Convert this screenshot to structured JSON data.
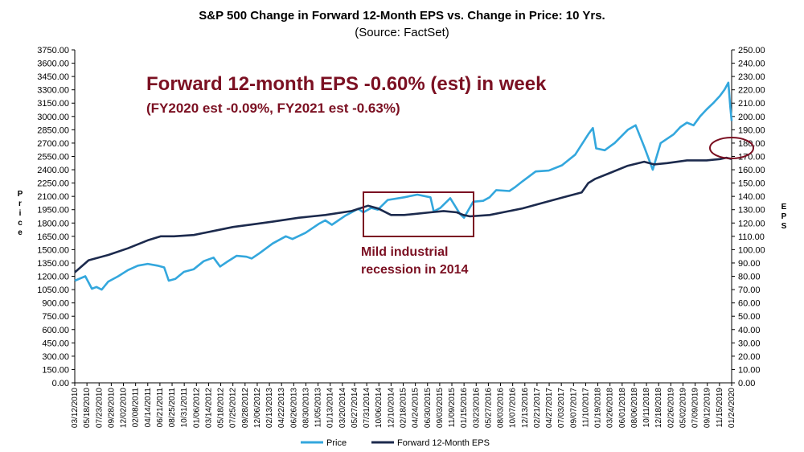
{
  "chart_data": {
    "type": "line",
    "title": "S&P 500 Change in Forward 12-Month EPS vs. Change in Price: 10 Yrs.",
    "subtitle": "(Source: FactSet)",
    "ylabel_left": "Price",
    "ylabel_right": "EPS",
    "ylim_left": [
      0,
      3750
    ],
    "ylim_right": [
      0,
      250
    ],
    "yticks_left": [
      "0.00",
      "150.00",
      "300.00",
      "450.00",
      "600.00",
      "750.00",
      "900.00",
      "1050.00",
      "1200.00",
      "1350.00",
      "1500.00",
      "1650.00",
      "1800.00",
      "1950.00",
      "2100.00",
      "2250.00",
      "2400.00",
      "2550.00",
      "2700.00",
      "2850.00",
      "3000.00",
      "3150.00",
      "3300.00",
      "3450.00",
      "3600.00",
      "3750.00"
    ],
    "yticks_right": [
      "0.00",
      "10.00",
      "20.00",
      "30.00",
      "40.00",
      "50.00",
      "60.00",
      "70.00",
      "80.00",
      "90.00",
      "100.00",
      "110.00",
      "120.00",
      "130.00",
      "140.00",
      "150.00",
      "160.00",
      "170.00",
      "180.00",
      "190.00",
      "200.00",
      "210.00",
      "220.00",
      "230.00",
      "240.00",
      "250.00"
    ],
    "x_date_range": [
      "03/12/2010",
      "03/06/2020"
    ],
    "xtick_labels": [
      "03/12/2010",
      "05/18/2010",
      "07/23/2010",
      "09/28/2010",
      "12/02/2010",
      "02/08/2011",
      "04/14/2011",
      "06/21/2011",
      "08/25/2011",
      "10/31/2011",
      "01/06/2012",
      "03/14/2012",
      "05/18/2012",
      "07/25/2012",
      "09/28/2012",
      "12/06/2012",
      "02/13/2013",
      "04/22/2013",
      "06/26/2013",
      "08/30/2013",
      "11/05/2013",
      "01/13/2014",
      "03/20/2014",
      "05/27/2014",
      "07/31/2014",
      "10/06/2014",
      "12/10/2014",
      "02/18/2015",
      "04/24/2015",
      "06/30/2015",
      "09/03/2015",
      "11/09/2015",
      "01/15/2016",
      "03/23/2016",
      "05/27/2016",
      "08/03/2016",
      "10/07/2016",
      "12/13/2016",
      "02/21/2017",
      "04/27/2017",
      "07/03/2017",
      "09/07/2017",
      "11/10/2017",
      "01/19/2018",
      "03/26/2018",
      "06/01/2018",
      "08/06/2018",
      "10/11/2018",
      "12/18/2018",
      "02/26/2019",
      "05/02/2019",
      "07/09/2019",
      "09/12/2019",
      "11/15/2019",
      "01/24/2020"
    ],
    "series": [
      {
        "name": "Price",
        "color": "#33a7dd",
        "axis": "left",
        "x": [
          2010.19,
          2010.35,
          2010.45,
          2010.52,
          2010.6,
          2010.7,
          2010.85,
          2011.0,
          2011.15,
          2011.3,
          2011.45,
          2011.55,
          2011.62,
          2011.72,
          2011.85,
          2012.0,
          2012.15,
          2012.3,
          2012.4,
          2012.5,
          2012.65,
          2012.8,
          2012.88,
          2013.0,
          2013.2,
          2013.4,
          2013.5,
          2013.7,
          2013.9,
          2014.0,
          2014.1,
          2014.3,
          2014.5,
          2014.58,
          2014.7,
          2014.8,
          2014.95,
          2015.2,
          2015.4,
          2015.6,
          2015.65,
          2015.75,
          2015.9,
          2016.05,
          2016.11,
          2016.25,
          2016.4,
          2016.5,
          2016.6,
          2016.8,
          2016.88,
          2017.0,
          2017.2,
          2017.4,
          2017.6,
          2017.8,
          2018.0,
          2018.07,
          2018.12,
          2018.25,
          2018.4,
          2018.6,
          2018.72,
          2018.85,
          2018.98,
          2019.1,
          2019.3,
          2019.4,
          2019.5,
          2019.6,
          2019.7,
          2019.8,
          2019.9,
          2020.0,
          2020.07,
          2020.13,
          2020.16,
          2020.18
        ],
        "values": [
          1150,
          1200,
          1060,
          1080,
          1050,
          1140,
          1200,
          1270,
          1320,
          1340,
          1320,
          1300,
          1150,
          1170,
          1250,
          1280,
          1370,
          1410,
          1310,
          1360,
          1430,
          1420,
          1400,
          1460,
          1570,
          1650,
          1620,
          1690,
          1790,
          1830,
          1780,
          1880,
          1960,
          1920,
          1970,
          1950,
          2060,
          2090,
          2120,
          2090,
          1930,
          1970,
          2080,
          1900,
          1860,
          2040,
          2050,
          2090,
          2170,
          2160,
          2200,
          2270,
          2380,
          2390,
          2450,
          2570,
          2800,
          2870,
          2640,
          2620,
          2700,
          2850,
          2900,
          2660,
          2400,
          2700,
          2800,
          2880,
          2930,
          2900,
          3000,
          3080,
          3150,
          3230,
          3300,
          3380,
          3100,
          2950
        ]
      },
      {
        "name": "Forward 12-Month EPS",
        "color": "#1c2a4d",
        "axis": "right",
        "x": [
          2010.19,
          2010.4,
          2010.7,
          2011.0,
          2011.3,
          2011.5,
          2011.7,
          2012.0,
          2012.3,
          2012.6,
          2012.9,
          2013.2,
          2013.6,
          2014.0,
          2014.4,
          2014.65,
          2014.8,
          2015.0,
          2015.2,
          2015.4,
          2015.6,
          2015.8,
          2016.0,
          2016.1,
          2016.2,
          2016.5,
          2016.8,
          2017.0,
          2017.3,
          2017.6,
          2017.9,
          2018.0,
          2018.1,
          2018.3,
          2018.6,
          2018.85,
          2019.0,
          2019.2,
          2019.5,
          2019.8,
          2020.0,
          2020.1,
          2020.18
        ],
        "values": [
          83,
          92,
          96,
          101,
          107,
          110,
          110,
          111,
          114,
          117,
          119,
          121,
          124,
          126,
          129,
          133,
          131,
          126,
          126,
          127,
          128,
          129,
          128,
          126,
          125,
          126,
          129,
          131,
          135,
          139,
          143,
          150,
          153,
          157,
          163,
          166,
          164,
          165,
          167,
          167,
          168,
          169,
          168
        ]
      }
    ],
    "annotations": {
      "headline": "Forward 12-month EPS -0.60% (est) in week",
      "subline": "(FY2020 est -0.09%, FY2021 est -0.63%)",
      "box_label_1": "Mild industrial",
      "box_label_2": "recession in 2014"
    },
    "legend": [
      {
        "label": "Price",
        "color": "#33a7dd"
      },
      {
        "label": "Forward 12-Month EPS",
        "color": "#1c2a4d"
      }
    ],
    "legend_position": "bottom-center",
    "grid": false,
    "annotation_color": "#7b1022"
  }
}
